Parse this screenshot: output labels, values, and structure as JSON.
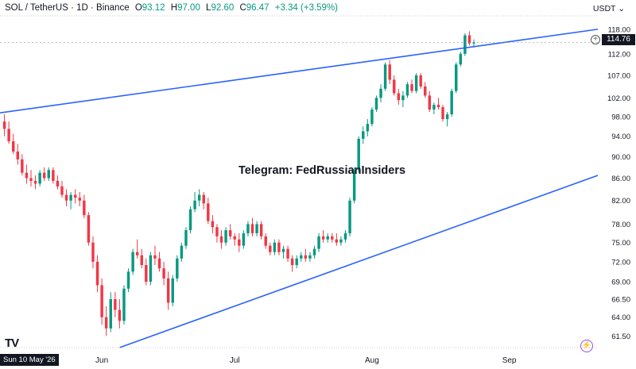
{
  "header": {
    "symbol": "SOL / TetherUS · 1D · Binance",
    "o_label": "O",
    "o_value": "93.12",
    "h_label": "H",
    "h_value": "97.00",
    "l_label": "L",
    "l_value": "92.60",
    "c_label": "C",
    "c_value": "96.47",
    "change": "+3.34 (+3.59%)",
    "currency": "USDT",
    "currency_chevron": "chevron-down-icon"
  },
  "watermark": "Telegram: FedRussianInsiders",
  "price_tag": "114.76",
  "crosshair_date": "Sun 10 May '26",
  "colors": {
    "up": "#089981",
    "down": "#f23645",
    "trendline": "#2962ff",
    "text": "#131722"
  },
  "chart_data": {
    "type": "candlestick",
    "series": [
      {
        "name": "SOL / TetherUS",
        "ohlc": [
          [
            97.0,
            98.5,
            94.0,
            95.5
          ],
          [
            95.5,
            97.0,
            92.5,
            93.0
          ],
          [
            93.0,
            94.5,
            90.5,
            91.0
          ],
          [
            91.0,
            92.5,
            88.5,
            89.5
          ],
          [
            89.5,
            90.5,
            86.5,
            87.0
          ],
          [
            87.0,
            88.5,
            85.0,
            86.0
          ],
          [
            86.0,
            87.5,
            84.5,
            85.5
          ],
          [
            85.5,
            86.5,
            84.0,
            85.0
          ],
          [
            85.0,
            87.5,
            84.5,
            87.0
          ],
          [
            87.0,
            88.0,
            85.5,
            86.0
          ],
          [
            86.0,
            88.0,
            85.5,
            87.5
          ],
          [
            87.5,
            88.0,
            85.0,
            85.5
          ],
          [
            85.5,
            86.5,
            84.0,
            84.5
          ],
          [
            84.5,
            85.5,
            82.5,
            83.0
          ],
          [
            83.0,
            84.0,
            81.0,
            82.0
          ],
          [
            82.0,
            83.5,
            80.5,
            83.0
          ],
          [
            83.0,
            84.0,
            81.5,
            82.5
          ],
          [
            82.5,
            83.5,
            81.0,
            82.0
          ],
          [
            82.0,
            83.0,
            79.0,
            79.5
          ],
          [
            79.5,
            80.0,
            74.5,
            75.0
          ],
          [
            75.0,
            76.0,
            71.0,
            72.0
          ],
          [
            72.0,
            73.0,
            67.5,
            68.5
          ],
          [
            68.5,
            69.5,
            63.0,
            64.0
          ],
          [
            64.0,
            65.5,
            61.5,
            62.5
          ],
          [
            62.5,
            67.5,
            62.0,
            66.5
          ],
          [
            66.5,
            67.5,
            64.0,
            65.0
          ],
          [
            65.0,
            66.5,
            62.5,
            63.5
          ],
          [
            63.5,
            68.5,
            63.0,
            68.0
          ],
          [
            68.0,
            71.0,
            67.5,
            70.5
          ],
          [
            70.5,
            74.0,
            70.0,
            73.5
          ],
          [
            73.5,
            75.5,
            72.5,
            73.0
          ],
          [
            73.0,
            74.0,
            71.0,
            71.5
          ],
          [
            71.5,
            72.5,
            68.5,
            69.0
          ],
          [
            69.0,
            73.5,
            68.5,
            73.0
          ],
          [
            73.0,
            74.5,
            71.5,
            72.5
          ],
          [
            72.5,
            73.5,
            70.5,
            71.0
          ],
          [
            71.0,
            72.0,
            68.5,
            69.5
          ],
          [
            69.5,
            70.5,
            65.0,
            66.0
          ],
          [
            66.0,
            70.0,
            65.5,
            69.5
          ],
          [
            69.5,
            73.0,
            69.0,
            72.5
          ],
          [
            72.5,
            75.0,
            72.0,
            74.5
          ],
          [
            74.5,
            77.5,
            74.0,
            77.0
          ],
          [
            77.0,
            81.0,
            76.5,
            80.5
          ],
          [
            80.5,
            83.5,
            80.0,
            82.0
          ],
          [
            82.0,
            84.0,
            81.0,
            83.0
          ],
          [
            83.0,
            83.5,
            80.5,
            81.5
          ],
          [
            81.5,
            82.5,
            78.0,
            78.5
          ],
          [
            78.5,
            79.5,
            76.5,
            77.5
          ],
          [
            77.5,
            78.0,
            75.0,
            76.0
          ],
          [
            76.0,
            77.0,
            74.0,
            75.0
          ],
          [
            75.0,
            77.5,
            74.5,
            77.0
          ],
          [
            77.0,
            78.0,
            75.5,
            76.0
          ],
          [
            76.0,
            76.5,
            74.5,
            75.5
          ],
          [
            75.5,
            76.5,
            73.5,
            74.5
          ],
          [
            74.5,
            77.0,
            74.0,
            76.5
          ],
          [
            76.5,
            78.5,
            76.0,
            78.0
          ],
          [
            78.0,
            79.0,
            76.0,
            76.5
          ],
          [
            76.5,
            78.5,
            76.0,
            78.0
          ],
          [
            78.0,
            78.5,
            75.5,
            76.0
          ],
          [
            76.0,
            76.5,
            74.0,
            74.5
          ],
          [
            74.5,
            75.0,
            73.0,
            73.5
          ],
          [
            73.5,
            75.5,
            73.0,
            75.0
          ],
          [
            75.0,
            75.5,
            73.0,
            73.5
          ],
          [
            73.5,
            74.5,
            72.5,
            74.0
          ],
          [
            74.0,
            74.5,
            72.0,
            72.5
          ],
          [
            72.5,
            73.0,
            70.5,
            71.5
          ],
          [
            71.5,
            73.0,
            71.0,
            72.5
          ],
          [
            72.5,
            73.5,
            72.0,
            73.0
          ],
          [
            73.0,
            74.0,
            72.0,
            72.5
          ],
          [
            72.5,
            73.5,
            72.0,
            73.0
          ],
          [
            73.0,
            74.5,
            72.5,
            74.0
          ],
          [
            74.0,
            76.5,
            73.5,
            76.0
          ],
          [
            76.0,
            77.0,
            75.0,
            75.5
          ],
          [
            75.5,
            76.5,
            75.0,
            76.0
          ],
          [
            76.0,
            76.5,
            75.0,
            75.5
          ],
          [
            75.5,
            76.5,
            74.5,
            75.0
          ],
          [
            75.0,
            76.0,
            74.5,
            75.5
          ],
          [
            75.5,
            77.0,
            75.0,
            76.5
          ],
          [
            76.5,
            82.5,
            76.0,
            82.0
          ],
          [
            82.0,
            88.0,
            81.5,
            87.5
          ],
          [
            87.5,
            94.0,
            87.0,
            93.5
          ],
          [
            93.5,
            96.0,
            92.5,
            95.0
          ],
          [
            95.0,
            97.5,
            94.0,
            96.5
          ],
          [
            96.5,
            100.0,
            96.0,
            99.5
          ],
          [
            99.5,
            102.5,
            99.0,
            102.0
          ],
          [
            102.0,
            105.0,
            101.0,
            104.0
          ],
          [
            104.0,
            110.0,
            103.5,
            109.5
          ],
          [
            109.5,
            110.5,
            105.0,
            106.0
          ],
          [
            106.0,
            107.0,
            102.5,
            103.0
          ],
          [
            103.0,
            104.0,
            100.5,
            101.5
          ],
          [
            101.5,
            103.5,
            100.0,
            102.5
          ],
          [
            102.5,
            105.5,
            102.0,
            105.0
          ],
          [
            105.0,
            106.0,
            103.0,
            103.5
          ],
          [
            103.5,
            107.5,
            103.0,
            107.0
          ],
          [
            107.0,
            107.5,
            104.0,
            104.5
          ],
          [
            104.5,
            105.5,
            102.0,
            102.5
          ],
          [
            102.5,
            103.5,
            99.0,
            99.5
          ],
          [
            99.5,
            101.0,
            98.5,
            100.5
          ],
          [
            100.5,
            102.0,
            99.5,
            100.0
          ],
          [
            100.0,
            100.5,
            97.0,
            97.5
          ],
          [
            97.5,
            99.0,
            96.0,
            98.5
          ],
          [
            98.5,
            104.0,
            98.0,
            103.5
          ],
          [
            103.5,
            110.0,
            103.0,
            109.5
          ],
          [
            109.5,
            112.5,
            109.0,
            112.0
          ],
          [
            112.0,
            117.0,
            111.5,
            116.5
          ],
          [
            116.5,
            117.5,
            114.0,
            114.5
          ],
          [
            114.5,
            115.5,
            113.5,
            114.76
          ]
        ]
      }
    ],
    "x_ticks": [
      {
        "label": "Jun",
        "index": 22
      },
      {
        "label": "Jul",
        "index": 52
      },
      {
        "label": "Aug",
        "index": 83
      },
      {
        "label": "Sep",
        "index": 114
      }
    ],
    "y_ticks": [
      "61.50",
      "64.00",
      "66.50",
      "69.00",
      "72.00",
      "75.00",
      "78.00",
      "82.00",
      "86.00",
      "90.00",
      "94.00",
      "98.00",
      "102.00",
      "107.00",
      "112.00",
      "118.00"
    ],
    "y_scale": "log",
    "ylim": [
      60.0,
      121.0
    ],
    "xlim": [
      -1,
      134
    ],
    "trendlines": [
      {
        "name": "upper-trendline",
        "from": {
          "index": -1,
          "price": 98.8
        },
        "to": {
          "index": 134,
          "price": 118.0
        }
      },
      {
        "name": "lower-trendline",
        "from": {
          "index": 26,
          "price": 60.0
        },
        "to": {
          "index": 134,
          "price": 86.5
        }
      }
    ],
    "grid": false,
    "legend": "none"
  }
}
